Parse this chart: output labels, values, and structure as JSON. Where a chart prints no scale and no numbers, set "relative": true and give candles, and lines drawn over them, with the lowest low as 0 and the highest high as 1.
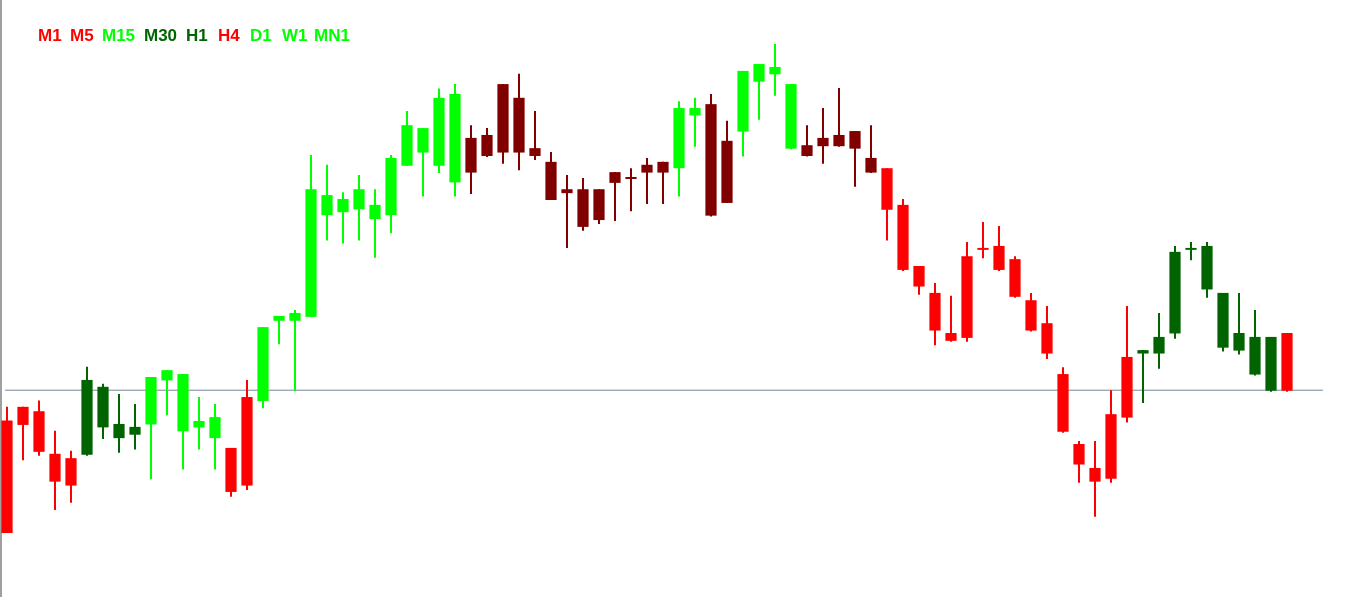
{
  "chart_data": {
    "type": "candlestick",
    "relative": true,
    "categories": [
      null,
      null,
      null,
      null,
      null,
      null,
      null,
      null,
      null,
      null,
      null,
      null,
      null,
      null,
      null,
      null,
      null,
      null,
      null,
      null,
      null,
      null,
      null,
      null,
      null,
      null,
      null,
      null,
      null,
      null,
      null,
      null,
      null,
      null,
      null,
      null,
      null,
      null,
      null,
      null,
      null,
      null,
      null,
      null,
      null,
      null,
      null,
      null,
      null,
      null,
      null,
      null,
      null,
      null,
      null,
      null,
      null,
      null,
      null,
      null,
      null,
      null,
      null,
      null,
      null,
      null,
      null,
      null,
      null,
      null,
      null,
      null,
      null,
      null,
      null,
      null,
      null,
      null,
      null,
      null,
      null
    ],
    "ohlc": [
      [
        0.23,
        0.258,
        0,
        0
      ],
      [
        0.258,
        0.258,
        0.149,
        0.221
      ],
      [
        0.249,
        0.271,
        0.158,
        0.166
      ],
      [
        0.162,
        0.209,
        0.047,
        0.105
      ],
      [
        0.153,
        0.168,
        0.062,
        0.097
      ],
      [
        0.16,
        0.34,
        0.158,
        0.313
      ],
      [
        0.216,
        0.305,
        0.192,
        0.299
      ],
      [
        0.194,
        0.284,
        0.164,
        0.223
      ],
      [
        0.201,
        0.264,
        0.171,
        0.217
      ],
      [
        0.222,
        0.319,
        0.11,
        0.319
      ],
      [
        0.312,
        0.333,
        0.241,
        0.333
      ],
      [
        0.208,
        0.325,
        0.13,
        0.325
      ],
      [
        0.216,
        0.278,
        0.171,
        0.229
      ],
      [
        0.194,
        0.264,
        0.13,
        0.237
      ],
      [
        0.174,
        0.174,
        0.074,
        0.084
      ],
      [
        0.278,
        0.313,
        0.088,
        0.097
      ],
      [
        0.27,
        0.421,
        0.255,
        0.421
      ],
      [
        0.434,
        0.444,
        0.386,
        0.444
      ],
      [
        0.434,
        0.456,
        0.29,
        0.45
      ],
      [
        0.442,
        0.773,
        0.442,
        0.703
      ],
      [
        0.65,
        0.753,
        0.598,
        0.691
      ],
      [
        0.656,
        0.697,
        0.592,
        0.683
      ],
      [
        0.662,
        0.732,
        0.598,
        0.703
      ],
      [
        0.642,
        0.703,
        0.563,
        0.671
      ],
      [
        0.65,
        0.773,
        0.613,
        0.767
      ],
      [
        0.751,
        0.863,
        0.751,
        0.834
      ],
      [
        0.778,
        0.828,
        0.688,
        0.828
      ],
      [
        0.751,
        0.909,
        0.736,
        0.89
      ],
      [
        0.717,
        0.918,
        0.688,
        0.898
      ],
      [
        0.808,
        0.834,
        0.693,
        0.737
      ],
      [
        0.814,
        0.828,
        0.769,
        0.771
      ],
      [
        0.918,
        0.918,
        0.755,
        0.778
      ],
      [
        0.89,
        0.939,
        0.742,
        0.778
      ],
      [
        0.787,
        0.863,
        0.763,
        0.771
      ],
      [
        0.759,
        0.779,
        0.681,
        0.681
      ],
      [
        0.703,
        0.732,
        0.583,
        0.695
      ],
      [
        0.703,
        0.726,
        0.618,
        0.626
      ],
      [
        0.703,
        0.703,
        0.632,
        0.64
      ],
      [
        0.738,
        0.738,
        0.638,
        0.716
      ],
      [
        0.728,
        0.746,
        0.658,
        0.724
      ],
      [
        0.753,
        0.767,
        0.673,
        0.737
      ],
      [
        0.759,
        0.759,
        0.673,
        0.737
      ],
      [
        0.746,
        0.883,
        0.688,
        0.869
      ],
      [
        0.854,
        0.89,
        0.79,
        0.869
      ],
      [
        0.877,
        0.898,
        0.647,
        0.649
      ],
      [
        0.802,
        0.843,
        0.675,
        0.675
      ],
      [
        0.821,
        0.945,
        0.77,
        0.945
      ],
      [
        0.923,
        0.959,
        0.845,
        0.959
      ],
      [
        0.938,
        1,
        0.894,
        0.953
      ],
      [
        0.786,
        0.918,
        0.785,
        0.918
      ],
      [
        0.793,
        0.834,
        0.77,
        0.771
      ],
      [
        0.808,
        0.869,
        0.755,
        0.791
      ],
      [
        0.814,
        0.91,
        0.79,
        0.791
      ],
      [
        0.822,
        0.822,
        0.708,
        0.786
      ],
      [
        0.767,
        0.834,
        0.736,
        0.737
      ],
      [
        0.746,
        0.746,
        0.598,
        0.661
      ],
      [
        0.671,
        0.683,
        0.536,
        0.538
      ],
      [
        0.546,
        0.546,
        0.487,
        0.504
      ],
      [
        0.491,
        0.511,
        0.384,
        0.414
      ],
      [
        0.409,
        0.485,
        0.391,
        0.393
      ],
      [
        0.566,
        0.595,
        0.391,
        0.399
      ],
      [
        0.583,
        0.636,
        0.562,
        0.579
      ],
      [
        0.587,
        0.628,
        0.536,
        0.538
      ],
      [
        0.56,
        0.566,
        0.481,
        0.483
      ],
      [
        0.476,
        0.491,
        0.412,
        0.414
      ],
      [
        0.429,
        0.464,
        0.356,
        0.367
      ],
      [
        0.325,
        0.339,
        0.205,
        0.207
      ],
      [
        0.182,
        0.188,
        0.103,
        0.14
      ],
      [
        0.133,
        0.188,
        0.033,
        0.105
      ],
      [
        0.243,
        0.292,
        0.103,
        0.111
      ],
      [
        0.36,
        0.464,
        0.226,
        0.236
      ],
      [
        0.367,
        0.374,
        0.266,
        0.374
      ],
      [
        0.367,
        0.45,
        0.336,
        0.401
      ],
      [
        0.408,
        0.587,
        0.397,
        0.575
      ],
      [
        0.583,
        0.595,
        0.558,
        0.579
      ],
      [
        0.498,
        0.595,
        0.481,
        0.587
      ],
      [
        0.379,
        0.491,
        0.371,
        0.491
      ],
      [
        0.373,
        0.491,
        0.365,
        0.409
      ],
      [
        0.324,
        0.456,
        0.322,
        0.401
      ],
      [
        0.291,
        0.401,
        0.289,
        0.401
      ],
      [
        0.409,
        0.409,
        0.289,
        0.291
      ]
    ],
    "colors": [
      "#ff0000",
      "#ff0000",
      "#ff0000",
      "#ff0000",
      "#ff0000",
      "#006400",
      "#006400",
      "#006400",
      "#006400",
      "#00ff00",
      "#00ff00",
      "#00ff00",
      "#00ff00",
      "#00ff00",
      "#ff0000",
      "#ff0000",
      "#00ff00",
      "#00ff00",
      "#00ff00",
      "#00ff00",
      "#00ff00",
      "#00ff00",
      "#00ff00",
      "#00ff00",
      "#00ff00",
      "#00ff00",
      "#00ff00",
      "#00ff00",
      "#00ff00",
      "#800000",
      "#800000",
      "#800000",
      "#800000",
      "#800000",
      "#800000",
      "#800000",
      "#800000",
      "#800000",
      "#800000",
      "#800000",
      "#800000",
      "#800000",
      "#00ff00",
      "#00ff00",
      "#800000",
      "#800000",
      "#00ff00",
      "#00ff00",
      "#00ff00",
      "#00ff00",
      "#800000",
      "#800000",
      "#800000",
      "#800000",
      "#800000",
      "#ff0000",
      "#ff0000",
      "#ff0000",
      "#ff0000",
      "#ff0000",
      "#ff0000",
      "#ff0000",
      "#ff0000",
      "#ff0000",
      "#ff0000",
      "#ff0000",
      "#ff0000",
      "#ff0000",
      "#ff0000",
      "#ff0000",
      "#ff0000",
      "#006400",
      "#006400",
      "#006400",
      "#006400",
      "#006400",
      "#006400",
      "#006400",
      "#006400",
      "#006400",
      "#ff0000"
    ],
    "ref_lines": [
      {
        "axis": "y",
        "value": 0.292,
        "color": "#778899"
      }
    ],
    "annotations": [
      "M1",
      "M5",
      "M15",
      "M30",
      "H1",
      "H4",
      "D1",
      "W1",
      "MN1"
    ]
  }
}
